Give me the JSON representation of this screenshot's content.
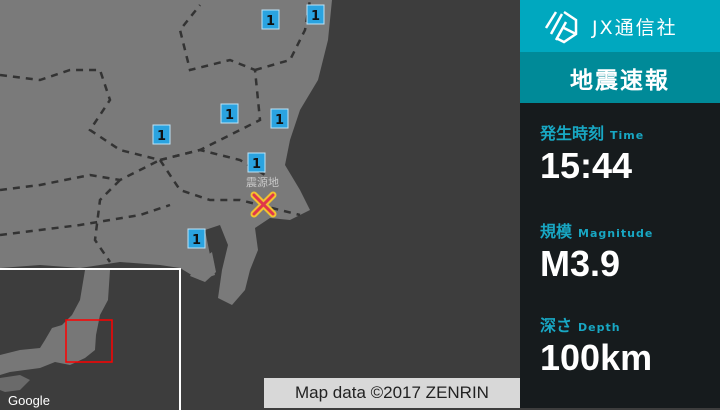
{
  "brand": {
    "name": "JX通信社",
    "logo_icon": "jx-logo-icon"
  },
  "banner": {
    "title": "地震速報"
  },
  "info": {
    "time": {
      "label": "発生時刻",
      "label_en": "Time",
      "value": "15:44"
    },
    "magnitude": {
      "label": "規模",
      "label_en": "Magnitude",
      "value": "M3.9"
    },
    "depth": {
      "label": "深さ",
      "label_en": "Depth",
      "value": "100km"
    }
  },
  "map": {
    "epicenter_label": "震源地",
    "epicenter_icon": "x-mark-icon",
    "intensity_markers": [
      "1",
      "1",
      "1",
      "1",
      "1",
      "1",
      "1"
    ],
    "attribution": "Map data ©2017 ZENRIN",
    "inset_logo": "Google"
  },
  "colors": {
    "brand": "#00a8bf",
    "banner": "#008a98",
    "label": "#18a7c3",
    "marker": "#2aa3e0",
    "epicenter": "#e0364a",
    "inset_box": "#ff0000"
  }
}
